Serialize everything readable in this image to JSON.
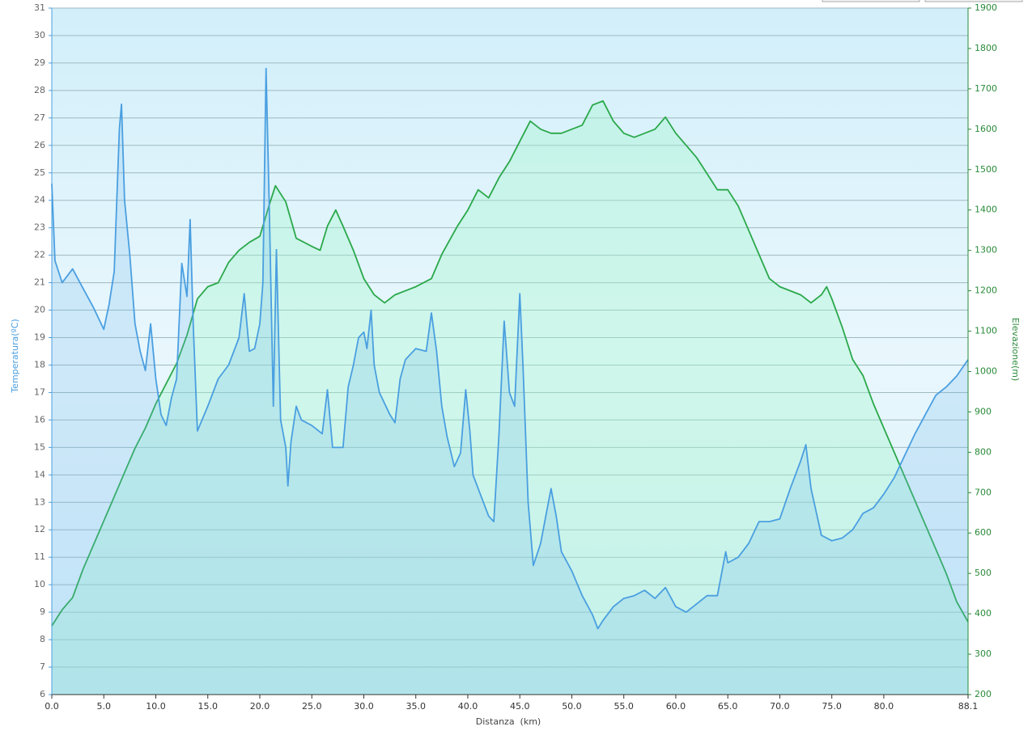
{
  "chart_data": {
    "type": "line",
    "xlabel": "Distanza  (km)",
    "ylabel": "Temperatura(ºC)",
    "y2label": "Elevazione(m)",
    "xlim": [
      0,
      88.1
    ],
    "ylim": [
      6,
      31
    ],
    "y2lim": [
      200,
      1900
    ],
    "xticks": [
      {
        "value": 0,
        "label": "0.0"
      },
      {
        "value": 5,
        "label": "5.0"
      },
      {
        "value": 10,
        "label": "10.0"
      },
      {
        "value": 15,
        "label": "15.0"
      },
      {
        "value": 20,
        "label": "20.0"
      },
      {
        "value": 25,
        "label": "25.0"
      },
      {
        "value": 30,
        "label": "30.0"
      },
      {
        "value": 35,
        "label": "35.0"
      },
      {
        "value": 40,
        "label": "40.0"
      },
      {
        "value": 45,
        "label": "45.0"
      },
      {
        "value": 50,
        "label": "50.0"
      },
      {
        "value": 55,
        "label": "55.0"
      },
      {
        "value": 60,
        "label": "60.0"
      },
      {
        "value": 65,
        "label": "65.0"
      },
      {
        "value": 70,
        "label": "70.0"
      },
      {
        "value": 75,
        "label": "75.0"
      },
      {
        "value": 80,
        "label": "80.0"
      },
      88.1
    ],
    "yticks": [
      6,
      7,
      8,
      9,
      10,
      11,
      12,
      13,
      14,
      15,
      16,
      17,
      18,
      19,
      20,
      21,
      22,
      23,
      24,
      25,
      26,
      27,
      28,
      29,
      30,
      31
    ],
    "y2ticks": [
      200,
      300,
      400,
      500,
      600,
      700,
      800,
      900,
      1000,
      1100,
      1200,
      1300,
      1400,
      1500,
      1600,
      1700,
      1800,
      1900
    ],
    "grid": true,
    "series": [
      {
        "color": "#2aa84a",
        "axis": "y2",
        "x": [
          0,
          1,
          2,
          3,
          4,
          5,
          6,
          7,
          8,
          9,
          10,
          11,
          12,
          13,
          14,
          15,
          16,
          17,
          18,
          19,
          20,
          21,
          21.5,
          22.5,
          23.5,
          25,
          25.8,
          26.5,
          27.3,
          28,
          29,
          30,
          31,
          32,
          33,
          35,
          36.5,
          37.5,
          39,
          40,
          41,
          42,
          43,
          44,
          45,
          46,
          47,
          48,
          49,
          50,
          51,
          52,
          53,
          54,
          55,
          56,
          57,
          58,
          59,
          60,
          61,
          62,
          63,
          64,
          65,
          66,
          67,
          68,
          69,
          70,
          71,
          72,
          73,
          74,
          74.5,
          75,
          76,
          77,
          78,
          79,
          80,
          81,
          82,
          83,
          84,
          85,
          86,
          87,
          88.1
        ],
        "values": [
          370,
          410,
          440,
          510,
          570,
          630,
          690,
          750,
          810,
          860,
          920,
          970,
          1020,
          1090,
          1180,
          1210,
          1220,
          1270,
          1300,
          1320,
          1335,
          1420,
          1460,
          1420,
          1330,
          1310,
          1300,
          1360,
          1400,
          1360,
          1300,
          1230,
          1190,
          1170,
          1190,
          1210,
          1230,
          1290,
          1360,
          1400,
          1450,
          1430,
          1480,
          1520,
          1570,
          1620,
          1600,
          1590,
          1590,
          1600,
          1610,
          1660,
          1670,
          1620,
          1590,
          1580,
          1590,
          1600,
          1630,
          1590,
          1560,
          1530,
          1490,
          1450,
          1450,
          1410,
          1350,
          1290,
          1230,
          1210,
          1200,
          1190,
          1170,
          1190,
          1210,
          1180,
          1110,
          1030,
          990,
          920,
          860,
          800,
          740,
          680,
          620,
          560,
          500,
          430,
          380
        ]
      },
      {
        "color": "#4a9fe0",
        "x": [
          0,
          0.3,
          1,
          2,
          3,
          4,
          5,
          5.5,
          6,
          6.5,
          6.7,
          7,
          7.5,
          8,
          8.5,
          9,
          9.5,
          10,
          10.5,
          11,
          11.5,
          12,
          12.5,
          13,
          13.3,
          13.6,
          14,
          15,
          16,
          17,
          17.5,
          18,
          18.5,
          19,
          19.5,
          20,
          20.3,
          20.6,
          20.9,
          21.3,
          21.6,
          22,
          22.5,
          22.7,
          23,
          23.5,
          24,
          25,
          26,
          26.5,
          27,
          28,
          28.5,
          29,
          29.5,
          30,
          30.3,
          30.7,
          31,
          31.5,
          32.5,
          33,
          33.5,
          34,
          35,
          36,
          36.5,
          37,
          37.5,
          38,
          38.7,
          39.3,
          39.8,
          40.2,
          40.5,
          41,
          42,
          42.5,
          43,
          43.5,
          44,
          44.5,
          45,
          45.3,
          45.8,
          46.3,
          47,
          47.5,
          48,
          48.5,
          49,
          50,
          51,
          52,
          52.5,
          53,
          54,
          55,
          56,
          57,
          58,
          59,
          60,
          61,
          62,
          63,
          64,
          64.8,
          65,
          66,
          67,
          68,
          69,
          70,
          71,
          72,
          72.5,
          73,
          74,
          75,
          76,
          77,
          78,
          79,
          80,
          81,
          82,
          83,
          84,
          85,
          86,
          87,
          88.1
        ],
        "values": [
          24.6,
          21.8,
          21,
          21.5,
          20.8,
          20.1,
          19.3,
          20.2,
          21.4,
          26.6,
          27.5,
          24,
          22,
          19.5,
          18.5,
          17.8,
          19.5,
          17.5,
          16.2,
          15.8,
          16.8,
          17.5,
          21.7,
          20.5,
          23.3,
          19.5,
          15.6,
          16.5,
          17.5,
          18,
          18.5,
          19,
          20.6,
          18.5,
          18.6,
          19.5,
          21,
          28.8,
          24,
          16.5,
          22.2,
          16,
          15,
          13.6,
          15.2,
          16.5,
          16,
          15.8,
          15.5,
          17.1,
          15,
          15,
          17.2,
          18,
          19,
          19.2,
          18.6,
          20,
          18,
          17,
          16.2,
          15.9,
          17.5,
          18.2,
          18.6,
          18.5,
          19.9,
          18.5,
          16.5,
          15.4,
          14.3,
          14.8,
          17.1,
          15.6,
          14,
          13.5,
          12.5,
          12.3,
          15.5,
          19.6,
          17,
          16.5,
          20.6,
          18,
          13,
          10.7,
          11.5,
          12.5,
          13.5,
          12.5,
          11.2,
          10.5,
          9.6,
          8.9,
          8.4,
          8.7,
          9.2,
          9.5,
          9.6,
          9.8,
          9.5,
          9.9,
          9.2,
          9,
          9.3,
          9.6,
          9.6,
          11.2,
          10.8,
          11,
          11.5,
          12.3,
          12.3,
          12.4,
          13.5,
          14.5,
          15.1,
          13.5,
          11.8,
          11.6,
          11.7,
          12,
          12.6,
          12.8,
          13.3,
          13.9,
          14.7,
          15.5,
          16.2,
          16.9,
          17.2,
          17.6,
          18.2
        ]
      }
    ]
  }
}
